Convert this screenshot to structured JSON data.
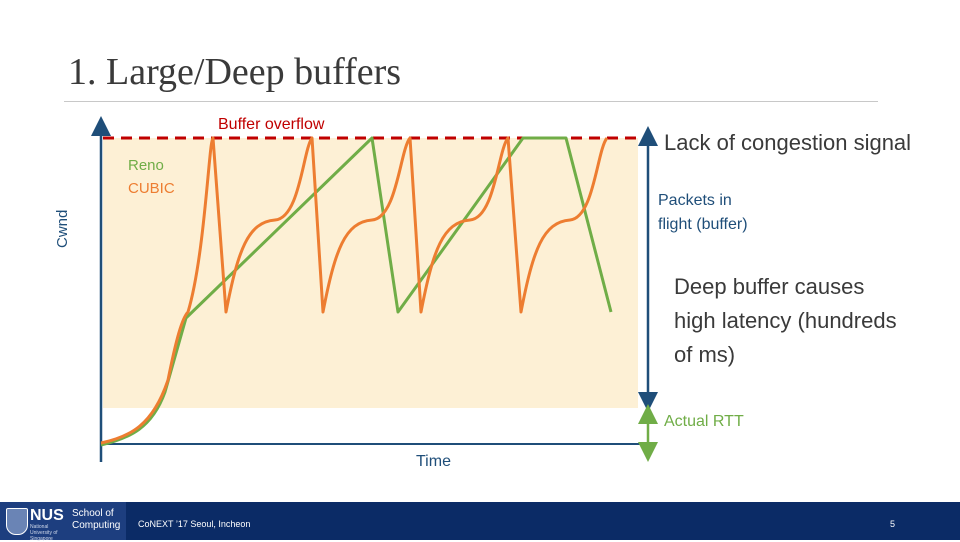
{
  "title": "1. Large/Deep buffers",
  "labels": {
    "buffer_overflow": "Buffer overflow",
    "reno": "Reno",
    "cubic": "CUBIC",
    "cwnd": "Cwnd",
    "time": "Time",
    "lack_signal": "Lack of congestion signal",
    "packets_in_flight_1": "Packets in",
    "packets_in_flight_2": "flight (buffer)",
    "deep_buffer_1": "Deep buffer causes",
    "deep_buffer_2": "high latency (hundreds",
    "deep_buffer_3": "of ms)",
    "actual_rtt": "Actual RTT"
  },
  "colors": {
    "reno": "#70ad47",
    "cubic": "#ed7d31",
    "buffer_line": "#c00000",
    "buffer_fill": "#fdf0d5",
    "axis": "#1f4e79",
    "footer": "#0b2b66"
  },
  "footer": {
    "logo_text": "NUS",
    "logo_sub": "National University of Singapore",
    "school": "School of Computing",
    "venue": "CoNEXT ’17 Seoul, Incheon",
    "page": "5"
  }
}
